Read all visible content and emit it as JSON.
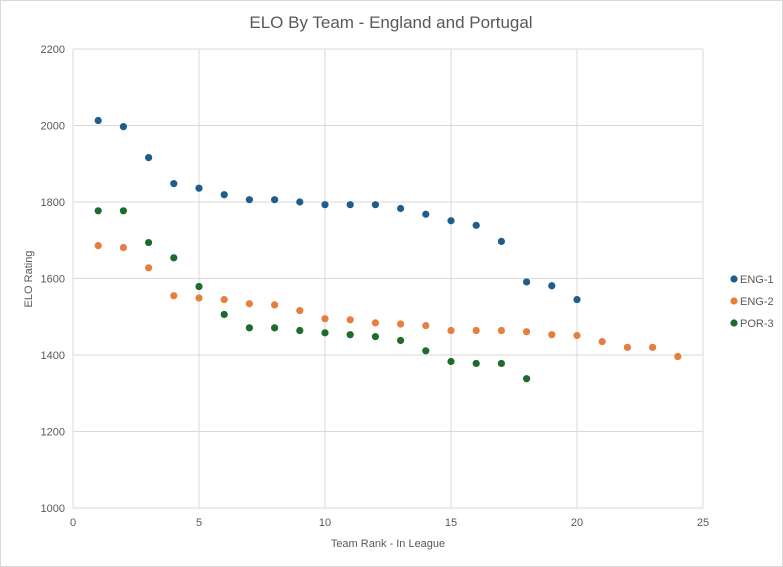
{
  "chart_data": {
    "type": "scatter",
    "title": "ELO By Team - England and Portugal",
    "xlabel": "Team Rank - In League",
    "ylabel": "ELO Rating",
    "xlim": [
      0,
      25
    ],
    "ylim": [
      1000,
      2200
    ],
    "xticks": [
      0,
      5,
      10,
      15,
      20,
      25
    ],
    "yticks": [
      1000,
      1200,
      1400,
      1600,
      1800,
      2000,
      2200
    ],
    "grid": true,
    "legend_position": "right",
    "series": [
      {
        "name": "ENG-1",
        "color": "#1f5d8a",
        "points": [
          [
            1,
            2013
          ],
          [
            2,
            1997
          ],
          [
            3,
            1916
          ],
          [
            4,
            1848
          ],
          [
            5,
            1836
          ],
          [
            6,
            1819
          ],
          [
            7,
            1806
          ],
          [
            8,
            1806
          ],
          [
            9,
            1800
          ],
          [
            10,
            1793
          ],
          [
            11,
            1793
          ],
          [
            12,
            1793
          ],
          [
            13,
            1783
          ],
          [
            14,
            1768
          ],
          [
            15,
            1751
          ],
          [
            16,
            1739
          ],
          [
            17,
            1697
          ],
          [
            18,
            1591
          ],
          [
            19,
            1581
          ],
          [
            20,
            1545
          ]
        ]
      },
      {
        "name": "ENG-2",
        "color": "#e87d3e",
        "points": [
          [
            1,
            1686
          ],
          [
            2,
            1681
          ],
          [
            3,
            1628
          ],
          [
            4,
            1555
          ],
          [
            5,
            1549
          ],
          [
            6,
            1545
          ],
          [
            7,
            1534
          ],
          [
            8,
            1531
          ],
          [
            9,
            1516
          ],
          [
            10,
            1495
          ],
          [
            11,
            1492
          ],
          [
            12,
            1484
          ],
          [
            13,
            1481
          ],
          [
            14,
            1477
          ],
          [
            15,
            1464
          ],
          [
            16,
            1464
          ],
          [
            17,
            1464
          ],
          [
            18,
            1461
          ],
          [
            19,
            1453
          ],
          [
            20,
            1451
          ],
          [
            21,
            1435
          ],
          [
            22,
            1420
          ],
          [
            23,
            1420
          ],
          [
            24,
            1396
          ]
        ]
      },
      {
        "name": "POR-3",
        "color": "#1e6b2e",
        "points": [
          [
            1,
            1777
          ],
          [
            2,
            1777
          ],
          [
            3,
            1694
          ],
          [
            4,
            1654
          ],
          [
            5,
            1579
          ],
          [
            6,
            1506
          ],
          [
            7,
            1471
          ],
          [
            8,
            1471
          ],
          [
            9,
            1464
          ],
          [
            10,
            1458
          ],
          [
            11,
            1453
          ],
          [
            12,
            1448
          ],
          [
            13,
            1438
          ],
          [
            14,
            1411
          ],
          [
            15,
            1383
          ],
          [
            16,
            1378
          ],
          [
            17,
            1378
          ],
          [
            18,
            1338
          ]
        ]
      }
    ]
  }
}
